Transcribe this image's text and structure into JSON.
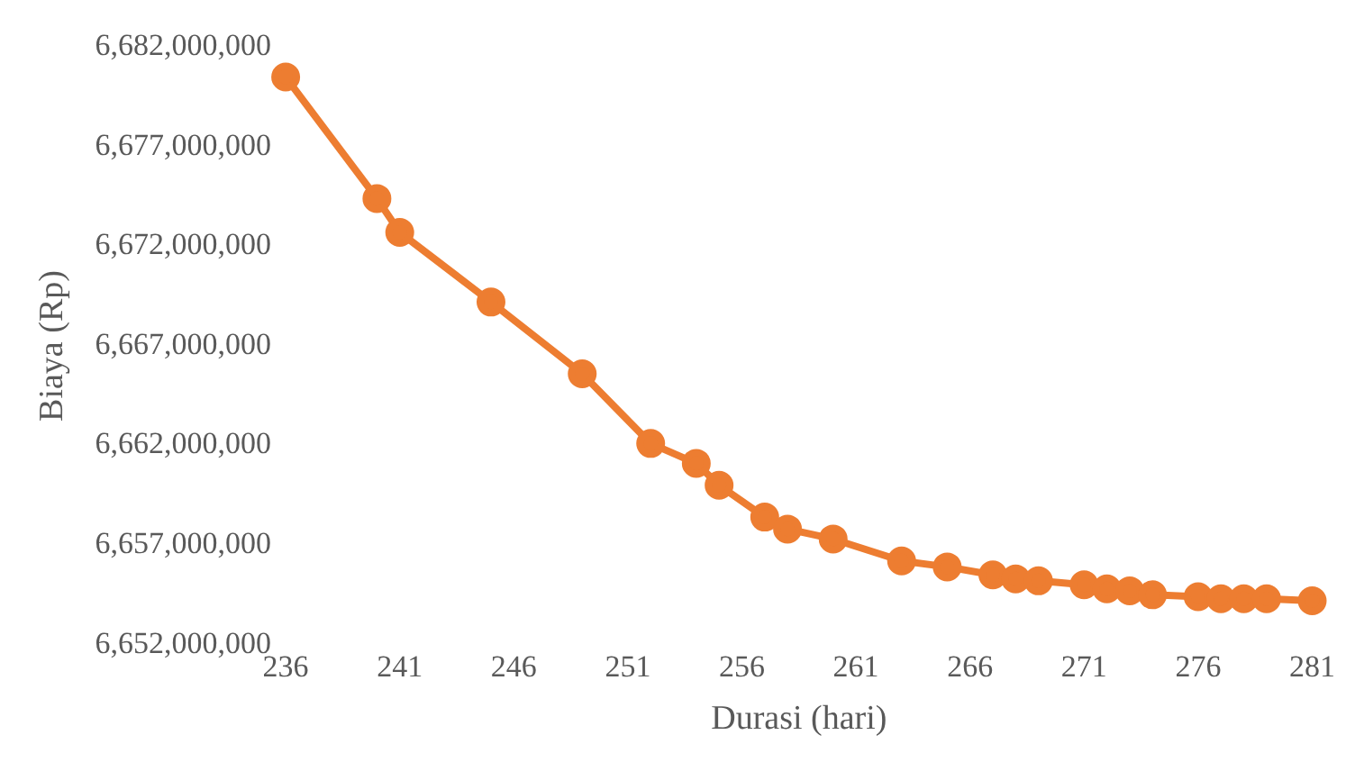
{
  "chart_data": {
    "type": "line",
    "xlabel": "Durasi (hari)",
    "ylabel": "Biaya (Rp)",
    "x": [
      236,
      240,
      241,
      245,
      249,
      252,
      254,
      255,
      257,
      258,
      260,
      263,
      265,
      267,
      268,
      269,
      271,
      272,
      273,
      274,
      276,
      277,
      278,
      279,
      281
    ],
    "series": [
      {
        "color": "#ed7d31",
        "values": [
          6680500000,
          6674400000,
          6672700000,
          6669200000,
          6665600000,
          6662100000,
          6661100000,
          6660000000,
          6658400000,
          6657800000,
          6657300000,
          6656200000,
          6655900000,
          6655500000,
          6655300000,
          6655200000,
          6655000000,
          6654800000,
          6654700000,
          6654500000,
          6654400000,
          6654300000,
          6654300000,
          6654300000,
          6654200000
        ]
      }
    ],
    "xlim": [
      236,
      281
    ],
    "xticks": [
      236,
      241,
      246,
      251,
      256,
      261,
      266,
      271,
      276,
      281
    ],
    "ylim": [
      6652000000,
      6682000000
    ],
    "yticks": [
      {
        "value": 6652000000,
        "label": "6,652,000,000"
      },
      {
        "value": 6657000000,
        "label": "6,657,000,000"
      },
      {
        "value": 6662000000,
        "label": "6,662,000,000"
      },
      {
        "value": 6667000000,
        "label": "6,667,000,000"
      },
      {
        "value": 6672000000,
        "label": "6,672,000,000"
      },
      {
        "value": 6677000000,
        "label": "6,677,000,000"
      },
      {
        "value": 6682000000,
        "label": "6,682,000,000"
      }
    ],
    "grid": false,
    "legend": false,
    "marker": "circle",
    "line_style": "solid"
  }
}
